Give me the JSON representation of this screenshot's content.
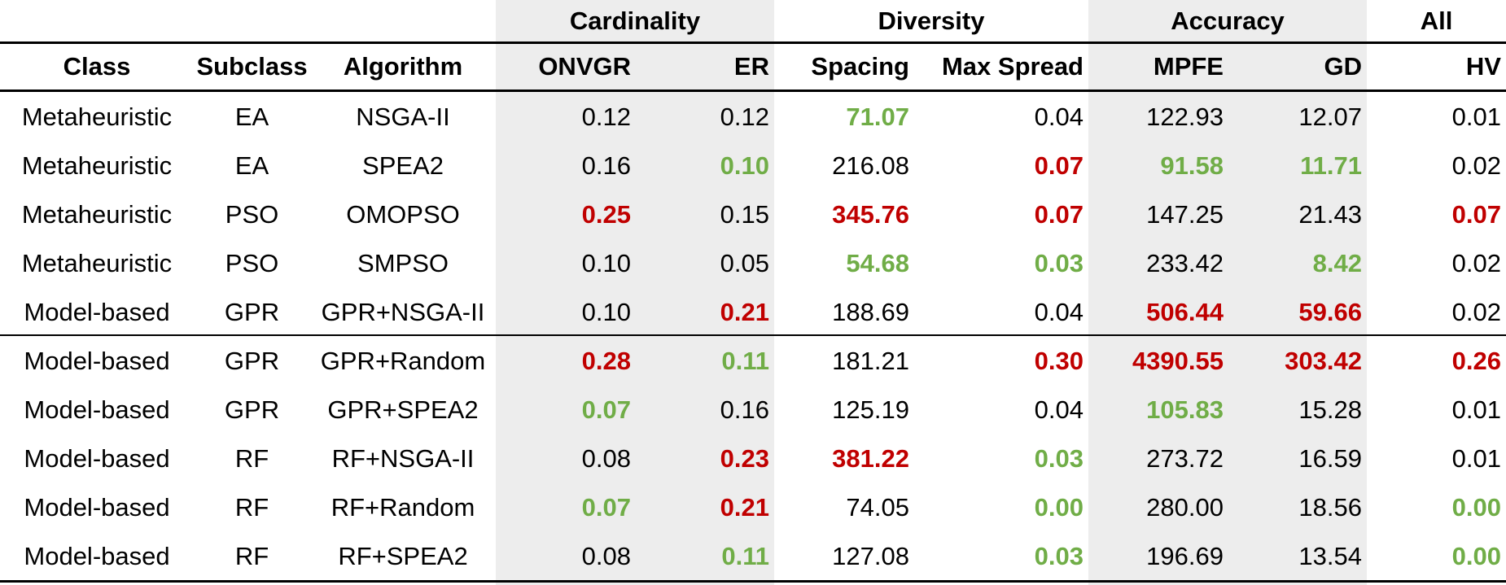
{
  "groups": {
    "cardinality": "Cardinality",
    "diversity": "Diversity",
    "accuracy": "Accuracy",
    "all": "All"
  },
  "headers": {
    "class": "Class",
    "subclass": "Subclass",
    "algorithm": "Algorithm",
    "onvgr": "ONVGR",
    "er": "ER",
    "spacing": "Spacing",
    "max_spread": "Max Spread",
    "mpfe": "MPFE",
    "gd": "GD",
    "hv": "HV"
  },
  "colors": {
    "good": "#70ad47",
    "bad": "#c00000",
    "shade": "#ededed"
  },
  "rows": [
    {
      "class": "Metaheuristic",
      "subclass": "EA",
      "algorithm": "NSGA-II",
      "onvgr": "0.12",
      "er": "0.12",
      "spacing": "71.07",
      "max_spread": "0.04",
      "mpfe": "122.93",
      "gd": "12.07",
      "hv": "0.01",
      "style": {
        "spacing": "good"
      }
    },
    {
      "class": "Metaheuristic",
      "subclass": "EA",
      "algorithm": "SPEA2",
      "onvgr": "0.16",
      "er": "0.10",
      "spacing": "216.08",
      "max_spread": "0.07",
      "mpfe": "91.58",
      "gd": "11.71",
      "hv": "0.02",
      "style": {
        "er": "good",
        "max_spread": "bad",
        "mpfe": "good",
        "gd": "good"
      }
    },
    {
      "class": "Metaheuristic",
      "subclass": "PSO",
      "algorithm": "OMOPSO",
      "onvgr": "0.25",
      "er": "0.15",
      "spacing": "345.76",
      "max_spread": "0.07",
      "mpfe": "147.25",
      "gd": "21.43",
      "hv": "0.07",
      "style": {
        "onvgr": "bad",
        "spacing": "bad",
        "max_spread": "bad",
        "hv": "bad"
      }
    },
    {
      "class": "Metaheuristic",
      "subclass": "PSO",
      "algorithm": "SMPSO",
      "onvgr": "0.10",
      "er": "0.05",
      "spacing": "54.68",
      "max_spread": "0.03",
      "mpfe": "233.42",
      "gd": "8.42",
      "hv": "0.02",
      "style": {
        "spacing": "good",
        "max_spread": "good",
        "gd": "good"
      }
    },
    {
      "class": "Model-based",
      "subclass": "GPR",
      "algorithm": "GPR+NSGA-II",
      "onvgr": "0.10",
      "er": "0.21",
      "spacing": "188.69",
      "max_spread": "0.04",
      "mpfe": "506.44",
      "gd": "59.66",
      "hv": "0.02",
      "style": {
        "er": "bad",
        "mpfe": "bad",
        "gd": "bad"
      }
    },
    {
      "class": "Model-based",
      "subclass": "GPR",
      "algorithm": "GPR+Random",
      "onvgr": "0.28",
      "er": "0.11",
      "spacing": "181.21",
      "max_spread": "0.30",
      "mpfe": "4390.55",
      "gd": "303.42",
      "hv": "0.26",
      "style": {
        "onvgr": "bad",
        "er": "good",
        "max_spread": "bad",
        "mpfe": "bad",
        "gd": "bad",
        "hv": "bad"
      }
    },
    {
      "class": "Model-based",
      "subclass": "GPR",
      "algorithm": "GPR+SPEA2",
      "onvgr": "0.07",
      "er": "0.16",
      "spacing": "125.19",
      "max_spread": "0.04",
      "mpfe": "105.83",
      "gd": "15.28",
      "hv": "0.01",
      "style": {
        "onvgr": "good",
        "mpfe": "good"
      }
    },
    {
      "class": "Model-based",
      "subclass": "RF",
      "algorithm": "RF+NSGA-II",
      "onvgr": "0.08",
      "er": "0.23",
      "spacing": "381.22",
      "max_spread": "0.03",
      "mpfe": "273.72",
      "gd": "16.59",
      "hv": "0.01",
      "style": {
        "er": "bad",
        "spacing": "bad",
        "max_spread": "good"
      }
    },
    {
      "class": "Model-based",
      "subclass": "RF",
      "algorithm": "RF+Random",
      "onvgr": "0.07",
      "er": "0.21",
      "spacing": "74.05",
      "max_spread": "0.00",
      "mpfe": "280.00",
      "gd": "18.56",
      "hv": "0.00",
      "style": {
        "onvgr": "good",
        "er": "bad",
        "max_spread": "good",
        "hv": "good"
      }
    },
    {
      "class": "Model-based",
      "subclass": "RF",
      "algorithm": "RF+SPEA2",
      "onvgr": "0.08",
      "er": "0.11",
      "spacing": "127.08",
      "max_spread": "0.03",
      "mpfe": "196.69",
      "gd": "13.54",
      "hv": "0.00",
      "style": {
        "er": "good",
        "max_spread": "good",
        "hv": "good"
      }
    }
  ]
}
